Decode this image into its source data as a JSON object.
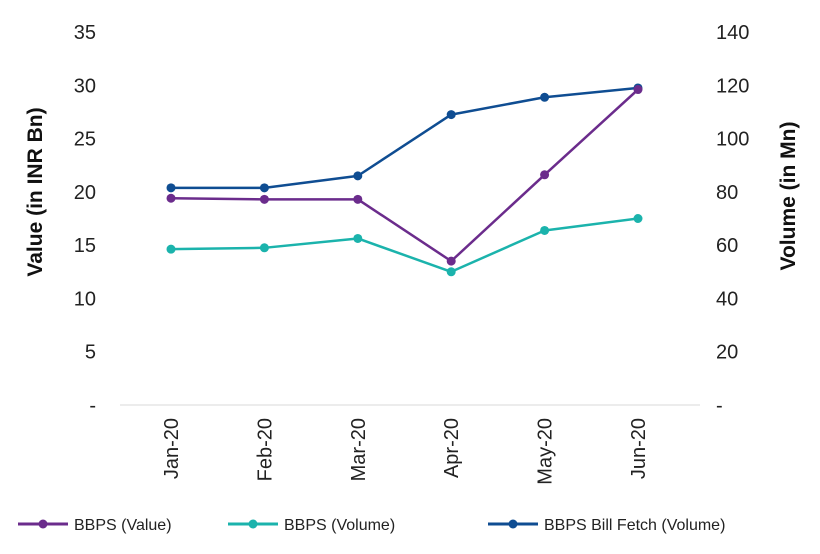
{
  "chart_data": {
    "type": "line",
    "categories": [
      "Jan-20",
      "Feb-20",
      "Mar-20",
      "Apr-20",
      "May-20",
      "Jun-20"
    ],
    "ylabel": "Value (in INR Bn)",
    "y2label": "Volume (in Mn)",
    "ylim": [
      0,
      35
    ],
    "y2lim": [
      0,
      140
    ],
    "yticks": [
      "-",
      "5",
      "10",
      "15",
      "20",
      "25",
      "30",
      "35"
    ],
    "y2ticks": [
      "-",
      "20",
      "40",
      "60",
      "80",
      "100",
      "120",
      "140"
    ],
    "legend_position": "bottom",
    "series": [
      {
        "name": "BBPS (Value)",
        "axis": "left",
        "color": "#6B2C8C",
        "values": [
          19.4,
          19.3,
          19.3,
          13.5,
          21.6,
          29.6
        ]
      },
      {
        "name": "BBPS (Volume)",
        "axis": "right",
        "color": "#1BB3AC",
        "values": [
          58.5,
          59,
          62.5,
          50,
          65.5,
          70
        ]
      },
      {
        "name": "BBPS Bill Fetch (Volume)",
        "axis": "right",
        "color": "#0F4D92",
        "values": [
          81.5,
          81.5,
          86,
          109,
          115.5,
          119
        ]
      }
    ]
  }
}
